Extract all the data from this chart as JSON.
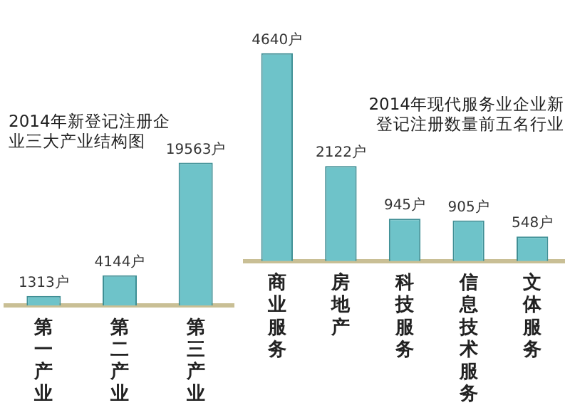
{
  "chart_data": [
    {
      "type": "bar",
      "title": "2014年新登记注册企业三大产业结构图",
      "categories": [
        "第一产业",
        "第二产业",
        "第三产业"
      ],
      "values": [
        1313,
        4144,
        19563
      ],
      "value_labels": [
        "1313户",
        "4144户",
        "19563户"
      ],
      "color": "#6ec3c9"
    },
    {
      "type": "bar",
      "title": "2014年现代服务业企业新登记注册数量前五名行业",
      "categories": [
        "商业服务",
        "房地产",
        "科技服务",
        "信息技术服务",
        "文体服务"
      ],
      "values": [
        4640,
        2122,
        945,
        905,
        548
      ],
      "value_labels": [
        "4640户",
        "2122户",
        "945户",
        "905户",
        "548户"
      ],
      "color": "#6ec3c9"
    }
  ]
}
